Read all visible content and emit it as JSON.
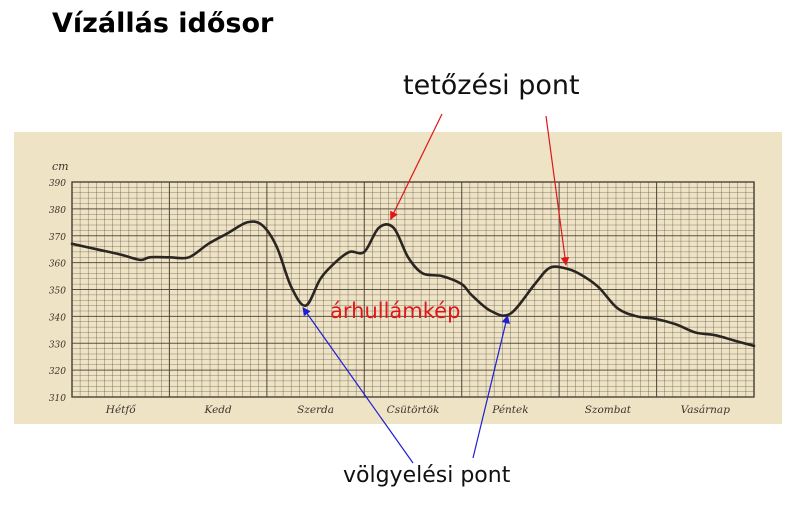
{
  "title": "Vízállás idősor",
  "annotations": {
    "peak": "tetőzési pont",
    "valley": "völgyelési pont",
    "wave": "árhullámkép"
  },
  "colors": {
    "paper": "#efe3c6",
    "grid": "#4a4438",
    "curve": "#2a2520",
    "wave_text": "#e0161b",
    "peak_arrow": "#e0161b",
    "valley_arrow": "#1f1fd0"
  },
  "chart_data": {
    "type": "line",
    "ylabel": "cm",
    "ylim": [
      310,
      390
    ],
    "yticks": [
      310,
      320,
      330,
      340,
      350,
      360,
      370,
      380,
      390
    ],
    "xlim": [
      0,
      7
    ],
    "categories": [
      "Hétfő",
      "Kedd",
      "Szerda",
      "Csütörtök",
      "Péntek",
      "Szombat",
      "Vasárnap"
    ],
    "grid": true,
    "series": [
      {
        "x": [
          0,
          0.25,
          0.5,
          0.7,
          0.8,
          1.0,
          1.2,
          1.4,
          1.6,
          1.8,
          1.95,
          2.1,
          2.25,
          2.4,
          2.55,
          2.7,
          2.85,
          3.0,
          3.15,
          3.3,
          3.45,
          3.6,
          3.8,
          4.0,
          4.1,
          4.3,
          4.5,
          4.75,
          4.9,
          5.05,
          5.2,
          5.4,
          5.6,
          5.8,
          6.0,
          6.2,
          6.4,
          6.6,
          6.8,
          7.0
        ],
        "y": [
          367,
          365,
          363,
          361,
          362,
          362,
          362,
          367,
          371,
          375,
          374,
          366,
          351,
          344,
          354,
          360,
          364,
          364,
          373,
          373,
          362,
          356,
          355,
          352,
          348,
          342,
          341,
          352,
          358,
          358,
          356,
          351,
          343,
          340,
          339,
          337,
          334,
          333,
          331,
          329
        ]
      }
    ],
    "highlights": {
      "peaks": [
        {
          "x": 3.25,
          "y": 375
        },
        {
          "x": 5.05,
          "y": 358
        }
      ],
      "valleys": [
        {
          "x": 2.35,
          "y": 344
        },
        {
          "x": 4.45,
          "y": 341
        }
      ]
    }
  }
}
